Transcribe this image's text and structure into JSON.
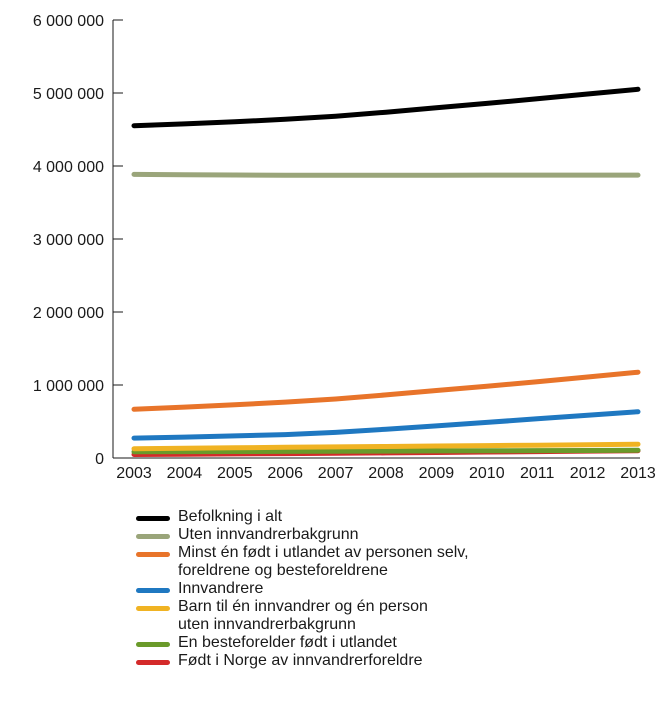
{
  "chart_data": {
    "type": "line",
    "title": "",
    "xlabel": "",
    "ylabel": "",
    "x": [
      2003,
      2004,
      2005,
      2006,
      2007,
      2008,
      2009,
      2010,
      2011,
      2012,
      2013
    ],
    "ylim": [
      0,
      6000000
    ],
    "yticks": [
      0,
      1000000,
      2000000,
      3000000,
      4000000,
      5000000,
      6000000
    ],
    "ytick_labels": [
      "0",
      "1 000 000",
      "2 000 000",
      "3 000 000",
      "4 000 000",
      "5 000 000",
      "6 000 000"
    ],
    "xtick_labels": [
      "2003",
      "2004",
      "2005",
      "2006",
      "2007",
      "2008",
      "2009",
      "2010",
      "2011",
      "2012",
      "2013"
    ],
    "grid": false,
    "legend_position": "bottom",
    "series": [
      {
        "name": "Befolkning i alt",
        "color": "#000000",
        "values": [
          4552000,
          4577000,
          4606000,
          4640000,
          4681000,
          4737000,
          4799000,
          4858000,
          4920000,
          4986000,
          5051000
        ]
      },
      {
        "name": "Uten innvandrerbakgrunn",
        "color": "#9aa57a",
        "values": [
          3885000,
          3880000,
          3877000,
          3874000,
          3873000,
          3873000,
          3874000,
          3875000,
          3876000,
          3876000,
          3875000
        ]
      },
      {
        "name": "Minst én født i utlandet av personen selv,\nforeldrene og besteforeldrene",
        "color": "#e8742a",
        "values": [
          667000,
          697000,
          729000,
          766000,
          808000,
          864000,
          925000,
          983000,
          1044000,
          1110000,
          1176000
        ]
      },
      {
        "name": "Innvandrere",
        "color": "#1f78c1",
        "values": [
          273000,
          286000,
          303000,
          321000,
          350000,
          394000,
          440000,
          488000,
          537000,
          586000,
          634000
        ]
      },
      {
        "name": "Barn til én innvandrer og én person\nuten innvandrerbakgrunn",
        "color": "#f0b323",
        "values": [
          128000,
          134000,
          140000,
          146000,
          152000,
          158000,
          164000,
          170000,
          176000,
          182000,
          189000
        ]
      },
      {
        "name": "En besteforelder født i utlandet",
        "color": "#6a9a2a",
        "values": [
          85000,
          87000,
          89000,
          91000,
          93000,
          95000,
          97000,
          99000,
          101000,
          103000,
          105000
        ]
      },
      {
        "name": "Født i Norge av innvandrerforeldre",
        "color": "#d42a2a",
        "values": [
          48000,
          52000,
          56000,
          60000,
          65000,
          70000,
          76000,
          82000,
          88000,
          94000,
          100000
        ]
      }
    ]
  }
}
